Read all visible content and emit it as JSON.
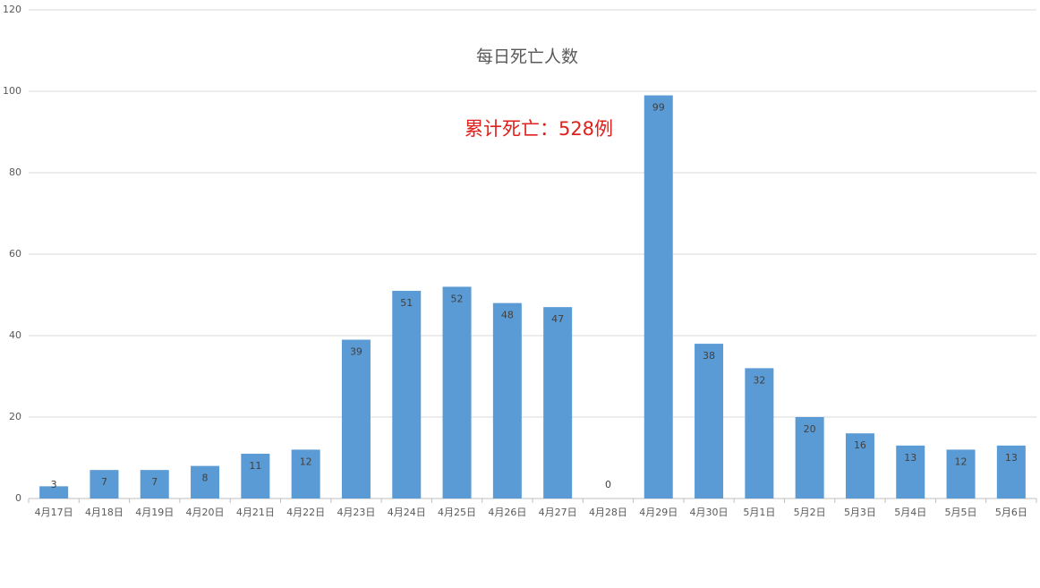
{
  "chart_data": {
    "type": "bar",
    "title": "每日死亡人数",
    "annotation": "累计死亡：528例",
    "categories": [
      "4月17日",
      "4月18日",
      "4月19日",
      "4月20日",
      "4月21日",
      "4月22日",
      "4月23日",
      "4月24日",
      "4月25日",
      "4月26日",
      "4月27日",
      "4月28日",
      "4月29日",
      "4月30日",
      "5月1日",
      "5月2日",
      "5月3日",
      "5月4日",
      "5月5日",
      "5月6日"
    ],
    "values": [
      3,
      7,
      7,
      8,
      11,
      12,
      39,
      51,
      52,
      48,
      47,
      0,
      99,
      38,
      32,
      20,
      16,
      13,
      12,
      13
    ],
    "color": "#5b9bd5",
    "annotation_color": "#e0201b",
    "ylim": [
      0,
      120
    ],
    "yticks": [
      0,
      20,
      40,
      60,
      80,
      100,
      120
    ],
    "grid": true
  }
}
